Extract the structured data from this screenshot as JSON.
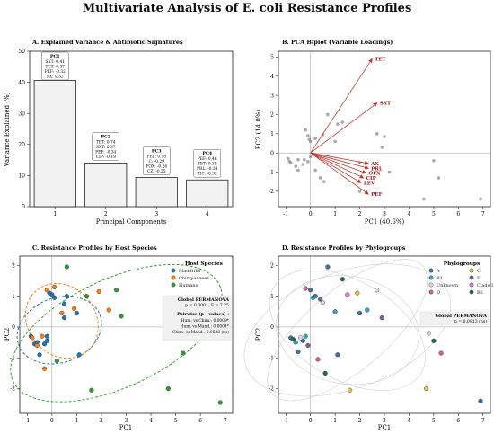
{
  "figure_title": "Multivariate Analysis of E. coli Resistance Profiles",
  "chart_data": [
    {
      "panel": "A",
      "type": "bar",
      "title": "A. Explained Variance & Antibiotic Signatures",
      "xlabel": "Principal Components",
      "ylabel": "Variance Explained (%)",
      "categories": [
        "1",
        "2",
        "3",
        "4"
      ],
      "values": [
        40.6,
        14.0,
        9.4,
        8.6
      ],
      "ylim": [
        0,
        50
      ],
      "yticks": [
        0,
        10,
        20,
        30,
        40,
        50
      ],
      "bar_color": "#f2f2f2",
      "annotations": [
        {
          "header": "PC1",
          "lines": [
            "SXT: 0.41",
            "TET: 0.37",
            "PEF: -0.32",
            "AX: 0.32"
          ]
        },
        {
          "header": "PC2",
          "lines": [
            "TET: 0.74",
            "SXT: 0.37",
            "PEF: -0.34",
            "CIP: -0.19"
          ]
        },
        {
          "header": "PC3",
          "lines": [
            "PEF: 0.58",
            "C: -0.29",
            "FOX: -0.26",
            "CZ: -0.25"
          ]
        },
        {
          "header": "PC4",
          "lines": [
            "PEF: 0.46",
            "TET: 0.39",
            "PRL: -0.34",
            "TIC: -0.32"
          ]
        }
      ]
    },
    {
      "panel": "B",
      "type": "scatter",
      "title": "B. PCA Biplot (Variable Loadings)",
      "xlabel": "PC1 (40.6%)",
      "ylabel": "PC2 (14.0%)",
      "xlim": [
        -1.3,
        7.3
      ],
      "ylim": [
        -2.8,
        5.3
      ],
      "xticks": [
        -1,
        0,
        1,
        2,
        3,
        4,
        5,
        6,
        7
      ],
      "yticks": [
        -2,
        -1,
        0,
        1,
        2,
        3,
        4,
        5
      ],
      "arrow_color": "#c0392b",
      "loadings": [
        {
          "label": "TET",
          "x": 2.5,
          "y": 4.9
        },
        {
          "label": "SXT",
          "x": 2.7,
          "y": 2.6
        },
        {
          "label": "AX",
          "x": 2.35,
          "y": -0.55
        },
        {
          "label": "PRL",
          "x": 2.35,
          "y": -0.8
        },
        {
          "label": "OFX",
          "x": 2.25,
          "y": -1.05
        },
        {
          "label": "CIP",
          "x": 2.15,
          "y": -1.3
        },
        {
          "label": "LEV",
          "x": 2.05,
          "y": -1.55
        },
        {
          "label": "PEF",
          "x": 2.35,
          "y": -2.15
        }
      ],
      "points": [
        [
          -0.9,
          -0.3
        ],
        [
          -0.85,
          -0.45
        ],
        [
          -0.8,
          -0.5
        ],
        [
          -0.6,
          -0.7
        ],
        [
          -0.5,
          -0.9
        ],
        [
          -0.5,
          -0.35
        ],
        [
          -0.3,
          -0.6
        ],
        [
          -0.25,
          -0.35
        ],
        [
          -0.1,
          -0.45
        ],
        [
          0.0,
          -0.2
        ],
        [
          -0.2,
          1.2
        ],
        [
          -0.1,
          0.9
        ],
        [
          -0.05,
          0.7
        ],
        [
          0.0,
          0.6
        ],
        [
          0.2,
          0.75
        ],
        [
          0.5,
          0.95
        ],
        [
          0.7,
          2.0
        ],
        [
          1.0,
          0.6
        ],
        [
          1.1,
          1.5
        ],
        [
          1.3,
          1.6
        ],
        [
          0.2,
          -0.9
        ],
        [
          0.55,
          -1.5
        ],
        [
          0.4,
          -1.3
        ],
        [
          2.0,
          -0.5
        ],
        [
          2.7,
          1.0
        ],
        [
          2.9,
          0.3
        ],
        [
          2.0,
          -2.0
        ],
        [
          3.0,
          0.85
        ],
        [
          5.0,
          -0.4
        ],
        [
          5.2,
          -1.3
        ],
        [
          6.9,
          -2.4
        ],
        [
          4.6,
          -2.4
        ],
        [
          3.2,
          -1.0
        ]
      ],
      "point_color": "#8c8c8c"
    },
    {
      "panel": "C",
      "type": "scatter",
      "title": "C. Resistance Profiles by Host Species",
      "xlabel": "PC1",
      "ylabel": "PC2",
      "xlim": [
        -1.3,
        7.3
      ],
      "ylim": [
        -2.8,
        2.3
      ],
      "xticks": [
        -1,
        0,
        1,
        2,
        3,
        4,
        5,
        6,
        7
      ],
      "yticks": [
        -2,
        -1,
        0,
        1,
        2
      ],
      "legend_title": "Host Species",
      "legend_position": "top-right",
      "series": [
        {
          "name": "Mandrills",
          "color": "#1f77b4",
          "points": [
            [
              -0.85,
              -0.3
            ],
            [
              -0.7,
              -0.55
            ],
            [
              -0.6,
              -0.5
            ],
            [
              -0.5,
              -0.9
            ],
            [
              -0.3,
              -0.55
            ],
            [
              -0.2,
              -0.3
            ],
            [
              0.0,
              1.05
            ],
            [
              0.1,
              0.95
            ],
            [
              -0.1,
              1.1
            ],
            [
              0.6,
              1.0
            ],
            [
              0.5,
              0.75
            ],
            [
              1.1,
              -0.9
            ],
            [
              1.0,
              0.45
            ],
            [
              0.5,
              0.3
            ],
            [
              -0.2,
              -0.45
            ]
          ],
          "ellipse": {
            "cx": 0.3,
            "cy": -0.1,
            "rx": 1.75,
            "ry": 1.05,
            "angle": -20
          }
        },
        {
          "name": "Chimpanzees",
          "color": "#ff7f0e",
          "points": [
            [
              -0.8,
              -0.35
            ],
            [
              -0.6,
              -0.6
            ],
            [
              -0.4,
              -0.3
            ],
            [
              -0.2,
              1.2
            ],
            [
              0.1,
              1.3
            ],
            [
              0.9,
              0.6
            ],
            [
              1.9,
              1.15
            ],
            [
              -0.3,
              -1.35
            ],
            [
              2.3,
              0.55
            ],
            [
              0.4,
              0.45
            ]
          ],
          "ellipse": {
            "cx": 0.4,
            "cy": 0.2,
            "rx": 1.6,
            "ry": 1.1,
            "angle": 50
          }
        },
        {
          "name": "Humans",
          "color": "#2ca02c",
          "points": [
            [
              0.6,
              1.95
            ],
            [
              2.6,
              1.2
            ],
            [
              1.6,
              -2.05
            ],
            [
              2.8,
              0.35
            ],
            [
              4.9,
              -0.15
            ],
            [
              4.7,
              -2.0
            ],
            [
              5.3,
              -0.85
            ],
            [
              6.8,
              -2.45
            ],
            [
              0.2,
              -1.1
            ],
            [
              1.4,
              1.0
            ]
          ],
          "ellipse": {
            "cx": 2.6,
            "cy": -0.2,
            "rx": 4.6,
            "ry": 1.75,
            "angle": -25
          }
        }
      ],
      "stats_box": {
        "title": "Global PERMANOVA",
        "line1": "p = 0.0001, F = 7.75",
        "subtitle": "Pairwise (p - values) :",
        "lines": [
          "Hum. vs Chim.: 0.0009*",
          "Hum. vs Mand.: 0.0001*",
          "Chim. vs Mand.: 0.0538 (ns)"
        ]
      }
    },
    {
      "panel": "D",
      "type": "scatter",
      "title": "D. Resistance Profiles by Phylogroups",
      "xlabel": "PC1",
      "ylabel": "PC2",
      "xlim": [
        -1.3,
        7.3
      ],
      "ylim": [
        -2.8,
        2.3
      ],
      "xticks": [
        -1,
        0,
        1,
        2,
        3,
        4,
        5,
        6,
        7
      ],
      "yticks": [
        -2,
        -1,
        0,
        1,
        2
      ],
      "legend_title": "Phylogroups",
      "legend_position": "top-right",
      "series": [
        {
          "name": "A",
          "color": "#3e6fa8",
          "points": [
            [
              -0.8,
              -0.35
            ],
            [
              -0.5,
              -0.8
            ],
            [
              0.0,
              1.2
            ],
            [
              0.7,
              1.95
            ],
            [
              2.0,
              0.45
            ],
            [
              1.1,
              -0.9
            ],
            [
              0.2,
              1.0
            ],
            [
              6.9,
              -2.4
            ],
            [
              -0.3,
              -0.45
            ]
          ]
        },
        {
          "name": "B1",
          "color": "#2aa8c4",
          "points": [
            [
              -0.6,
              -0.5
            ],
            [
              0.1,
              0.95
            ],
            [
              1.0,
              0.5
            ],
            [
              -0.2,
              -0.3
            ],
            [
              2.3,
              0.55
            ]
          ]
        },
        {
          "name": "Unknown",
          "color": "#d9d9d9",
          "points": [
            [
              -0.4,
              -0.35
            ],
            [
              0.5,
              0.8
            ],
            [
              2.7,
              1.2
            ],
            [
              4.8,
              -0.2
            ]
          ]
        },
        {
          "name": "D",
          "color": "#d95f8c",
          "points": [
            [
              -0.2,
              1.25
            ],
            [
              0.3,
              -1.05
            ],
            [
              5.3,
              -0.85
            ]
          ]
        },
        {
          "name": "C",
          "color": "#e8c34a",
          "points": [
            [
              1.9,
              1.1
            ],
            [
              1.6,
              -2.05
            ],
            [
              4.7,
              -2.0
            ]
          ]
        },
        {
          "name": "E",
          "color": "#7b5ea7",
          "points": [
            [
              0.4,
              0.9
            ],
            [
              -0.1,
              -0.6
            ],
            [
              2.9,
              0.3
            ]
          ]
        },
        {
          "name": "Clade I or II",
          "color": "#e377c2",
          "points": [
            [
              1.5,
              1.05
            ]
          ]
        },
        {
          "name": "B2",
          "color": "#1f6e4a",
          "points": [
            [
              1.3,
              1.55
            ],
            [
              -0.7,
              -0.4
            ],
            [
              0.6,
              -1.5
            ],
            [
              5.0,
              -0.45
            ]
          ]
        }
      ],
      "stats_box": {
        "title": "Global PERMANOVA",
        "line1": "p = 0.0913 (ns)"
      }
    }
  ]
}
